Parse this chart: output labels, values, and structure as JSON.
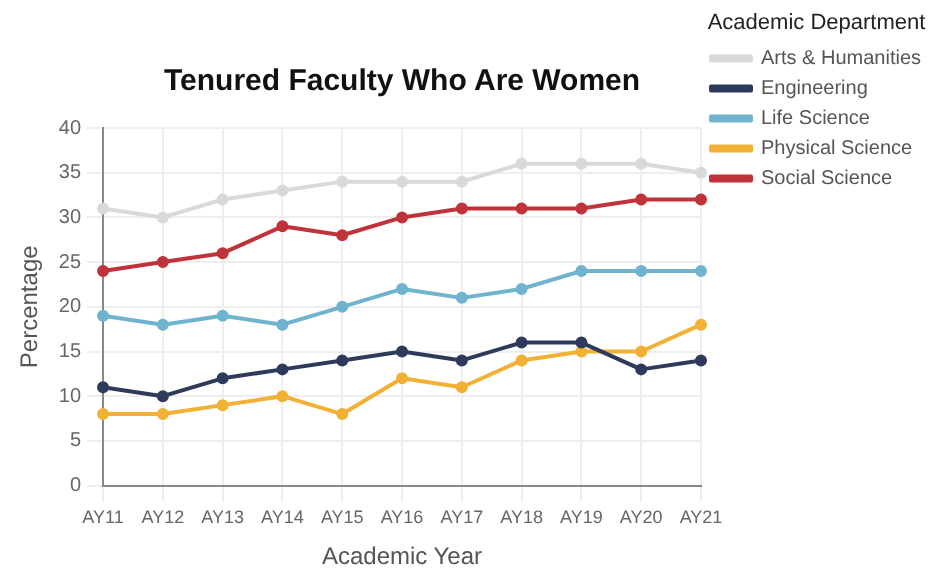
{
  "chart_data": {
    "type": "line",
    "title": "Tenured Faculty Who Are Women",
    "xlabel": "Academic Year",
    "ylabel": "Percentage",
    "legend_title": "Academic Department",
    "categories": [
      "AY11",
      "AY12",
      "AY13",
      "AY14",
      "AY15",
      "AY16",
      "AY17",
      "AY18",
      "AY19",
      "AY20",
      "AY21"
    ],
    "series": [
      {
        "name": "Arts & Humanities",
        "color": "#d9d9d9",
        "values": [
          31,
          30,
          32,
          33,
          34,
          34,
          34,
          36,
          36,
          36,
          35
        ]
      },
      {
        "name": "Engineering",
        "color": "#2e3a5c",
        "values": [
          11,
          10,
          12,
          13,
          14,
          15,
          14,
          16,
          16,
          13,
          14
        ]
      },
      {
        "name": "Life Science",
        "color": "#6fb3cf",
        "values": [
          19,
          18,
          19,
          18,
          20,
          22,
          21,
          22,
          24,
          24,
          24
        ]
      },
      {
        "name": "Physical Science",
        "color": "#f2b134",
        "values": [
          8,
          8,
          9,
          10,
          8,
          12,
          11,
          14,
          15,
          15,
          18
        ]
      },
      {
        "name": "Social Science",
        "color": "#c0333a",
        "values": [
          24,
          25,
          26,
          29,
          28,
          30,
          31,
          31,
          31,
          32,
          32
        ]
      }
    ],
    "ylim": [
      0,
      40
    ],
    "yticks": [
      0,
      5,
      10,
      15,
      20,
      25,
      30,
      35,
      40
    ],
    "grid": true,
    "legend": "top right",
    "marker": "circle",
    "line_style": "solid"
  }
}
